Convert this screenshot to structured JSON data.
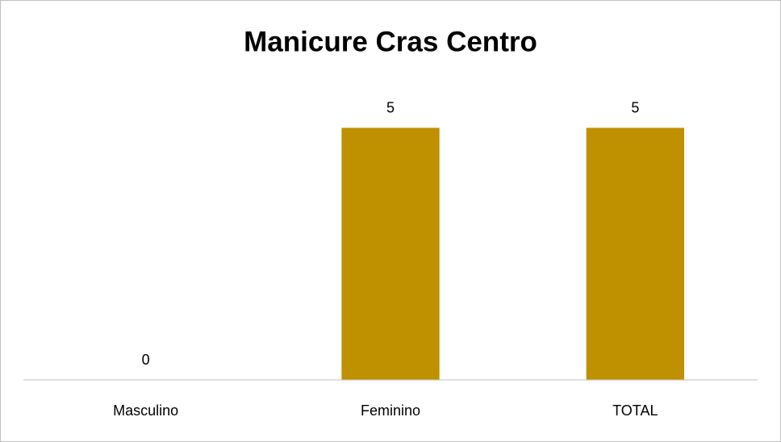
{
  "chart_data": {
    "type": "bar",
    "title": "Manicure Cras Centro",
    "categories": [
      "Masculino",
      "Feminino",
      "TOTAL"
    ],
    "values": [
      0,
      5,
      5
    ],
    "color": "#bf9000",
    "ylim": [
      0,
      6
    ]
  }
}
